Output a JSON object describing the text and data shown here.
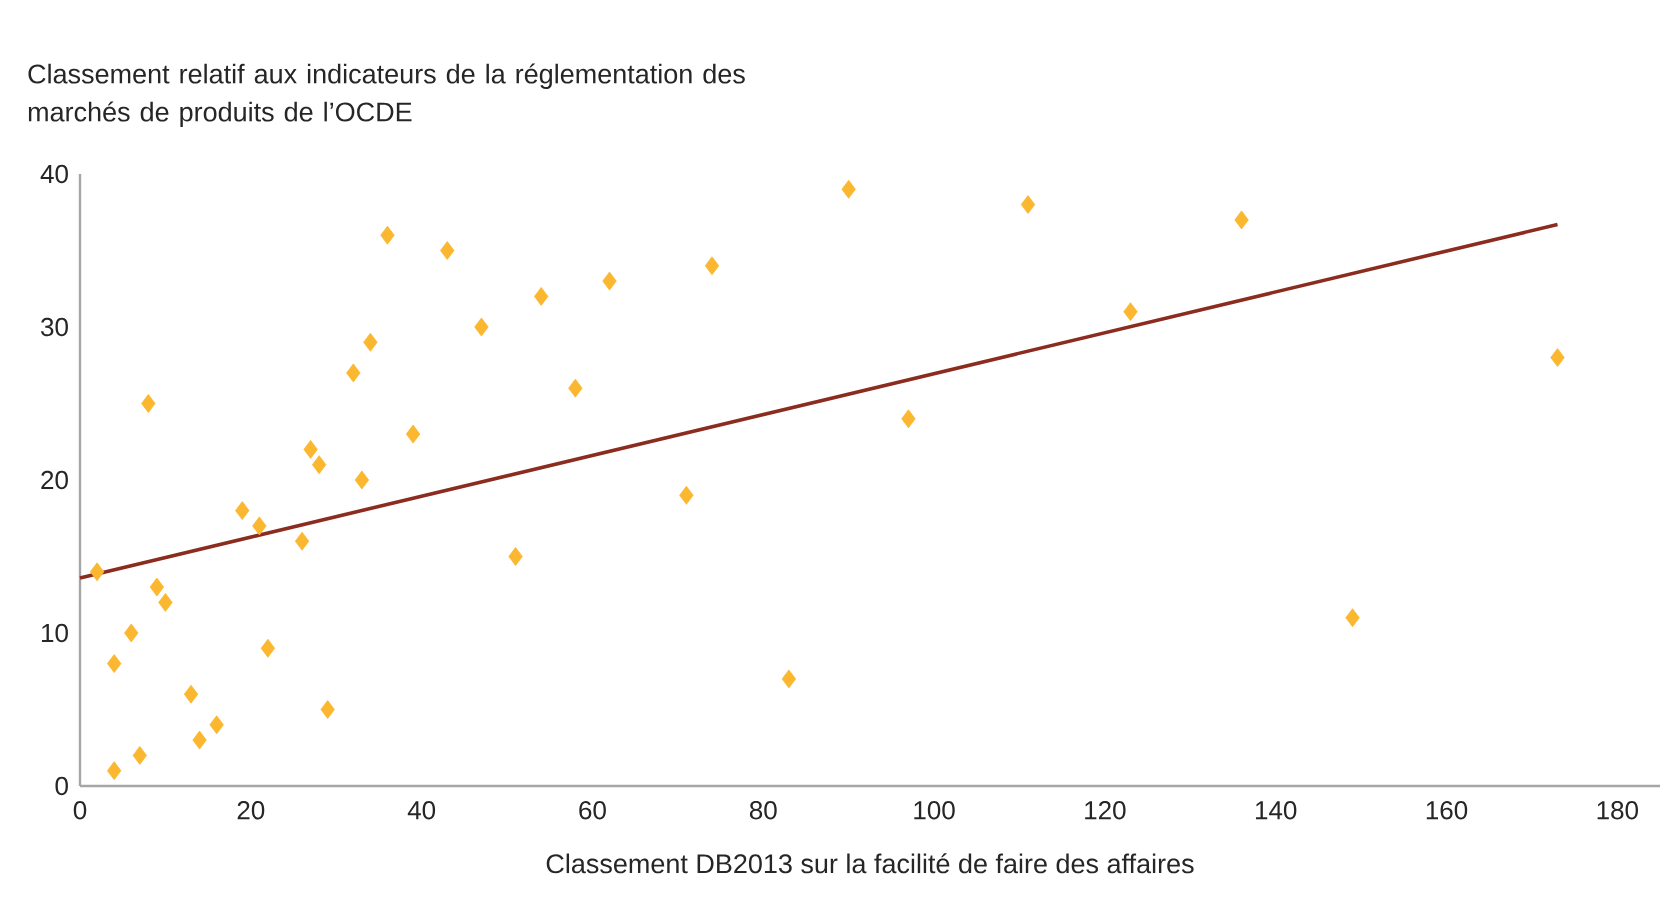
{
  "chart_data": {
    "type": "scatter",
    "ylabel": "Classement relatif aux indicateurs de la réglementation des marchés de produits de l’OCDE",
    "xlabel": "Classement DB2013 sur la facilité de faire des affaires",
    "xlim": [
      0,
      185
    ],
    "ylim": [
      0,
      40
    ],
    "xticks": [
      0,
      20,
      40,
      60,
      80,
      100,
      120,
      140,
      160,
      180
    ],
    "yticks": [
      0,
      10,
      20,
      30,
      40
    ],
    "grid": false,
    "series": [
      {
        "marker": "diamond",
        "color": "#fbb72f",
        "x": [
          2,
          4,
          4,
          6,
          7,
          8,
          9,
          10,
          13,
          14,
          16,
          19,
          21,
          22,
          26,
          27,
          28,
          29,
          32,
          33,
          34,
          36,
          39,
          43,
          47,
          51,
          54,
          58,
          62,
          71,
          74,
          83,
          90,
          97,
          111,
          123,
          136,
          149,
          173
        ],
        "values": [
          14,
          1,
          8,
          10,
          2,
          25,
          13,
          12,
          6,
          3,
          4,
          18,
          17,
          9,
          16,
          22,
          21,
          5,
          27,
          20,
          29,
          36,
          23,
          35,
          30,
          15,
          32,
          26,
          33,
          19,
          34,
          7,
          39,
          24,
          38,
          31,
          37,
          11,
          28
        ]
      },
      {
        "type": "line",
        "marker": "none",
        "color": "#8b2c1f",
        "x": [
          0,
          173
        ],
        "values": [
          13.6,
          36.7
        ]
      }
    ]
  }
}
